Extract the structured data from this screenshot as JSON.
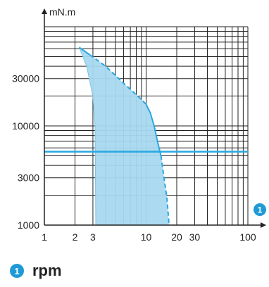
{
  "chart_data": {
    "type": "area",
    "y_unit": "mN.m",
    "x_scale": "log",
    "y_scale": "log",
    "xlim": [
      1,
      100
    ],
    "ylim": [
      1000,
      100000
    ],
    "x_tick_labels": [
      "1",
      "2",
      "3",
      "10",
      "20",
      "30",
      "100"
    ],
    "x_ticks": [
      1,
      2,
      3,
      10,
      20,
      30,
      100
    ],
    "y_tick_labels": [
      "1000",
      "3000",
      "10000",
      "30000"
    ],
    "y_ticks": [
      1000,
      3000,
      10000,
      30000
    ],
    "grid": true,
    "region": {
      "upper_solid": [
        [
          2.2,
          62000
        ],
        [
          2.8,
          52000
        ]
      ],
      "upper_dashed": [
        [
          2.8,
          52000
        ],
        [
          4,
          40000
        ],
        [
          6,
          27000
        ],
        [
          8.5,
          19500
        ],
        [
          10,
          16500
        ]
      ],
      "right_solid": [
        [
          10,
          16500
        ],
        [
          11,
          13500
        ],
        [
          12,
          10000
        ],
        [
          13,
          6800
        ],
        [
          14,
          5000
        ]
      ],
      "right_dashed": [
        [
          14,
          5000
        ],
        [
          15,
          3000
        ],
        [
          16,
          1900
        ],
        [
          16.8,
          1000
        ]
      ],
      "left_edge": [
        [
          2.2,
          62000
        ],
        [
          2.6,
          40000
        ],
        [
          3,
          20000
        ],
        [
          3.15,
          10000
        ],
        [
          3.2,
          1000
        ]
      ]
    },
    "reference_line": {
      "y": 5500
    }
  },
  "colors": {
    "fill": "#a8d8f0",
    "line": "#29a8df",
    "grid": "#222222",
    "axis": "#222222",
    "badge": "#1f9ad6"
  },
  "badges": {
    "axis_marker": "1",
    "legend_marker": "1"
  },
  "legend": {
    "label": "rpm"
  }
}
